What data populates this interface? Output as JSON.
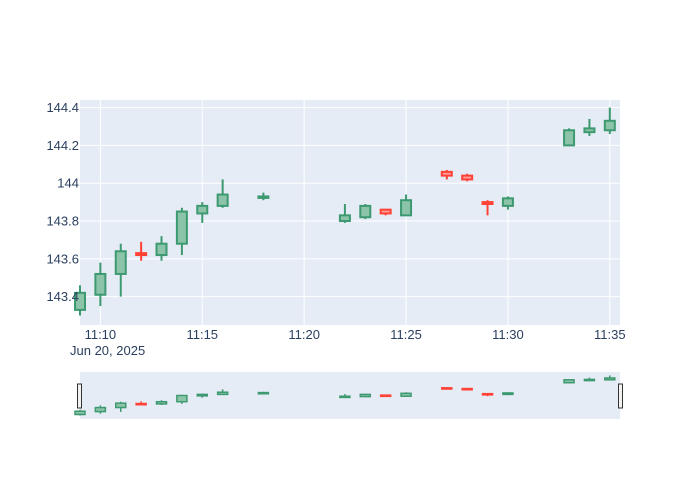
{
  "chart_data": {
    "type": "candlestick",
    "x_axis": {
      "ticks": [
        "11:10",
        "11:15",
        "11:20",
        "11:25",
        "11:30",
        "11:35"
      ],
      "date_label": "Jun 20, 2025",
      "range": [
        "11:09",
        "11:35.5"
      ]
    },
    "y_axis": {
      "ticks": [
        "143.4",
        "143.6",
        "143.8",
        "144",
        "144.2",
        "144.4"
      ],
      "range": [
        143.25,
        144.44
      ]
    },
    "grid": true,
    "rangeslider": true,
    "colors": {
      "increasing": "#3d9970",
      "increasing_fill": "#8cc4a9",
      "decreasing": "#ff4136",
      "decreasing_fill": "#ffa09b",
      "plot_background": "#e5ecf6",
      "grid": "#ffffff",
      "text": "#2a3f5f"
    },
    "candles": [
      {
        "time": "11:09",
        "open": 143.33,
        "high": 143.46,
        "low": 143.3,
        "close": 143.42
      },
      {
        "time": "11:10",
        "open": 143.41,
        "high": 143.58,
        "low": 143.35,
        "close": 143.52
      },
      {
        "time": "11:11",
        "open": 143.52,
        "high": 143.68,
        "low": 143.4,
        "close": 143.64
      },
      {
        "time": "11:12",
        "open": 143.63,
        "high": 143.69,
        "low": 143.59,
        "close": 143.62
      },
      {
        "time": "11:13",
        "open": 143.62,
        "high": 143.72,
        "low": 143.59,
        "close": 143.68
      },
      {
        "time": "11:14",
        "open": 143.68,
        "high": 143.87,
        "low": 143.62,
        "close": 143.85
      },
      {
        "time": "11:15",
        "open": 143.84,
        "high": 143.9,
        "low": 143.79,
        "close": 143.88
      },
      {
        "time": "11:16",
        "open": 143.88,
        "high": 144.02,
        "low": 143.87,
        "close": 143.94
      },
      {
        "time": "11:18",
        "open": 143.93,
        "high": 143.95,
        "low": 143.91,
        "close": 143.93
      },
      {
        "time": "11:22",
        "open": 143.8,
        "high": 143.89,
        "low": 143.79,
        "close": 143.83
      },
      {
        "time": "11:23",
        "open": 143.82,
        "high": 143.89,
        "low": 143.81,
        "close": 143.88
      },
      {
        "time": "11:24",
        "open": 143.86,
        "high": 143.86,
        "low": 143.83,
        "close": 143.84
      },
      {
        "time": "11:25",
        "open": 143.83,
        "high": 143.94,
        "low": 143.83,
        "close": 143.91
      },
      {
        "time": "11:27",
        "open": 144.06,
        "high": 144.07,
        "low": 144.02,
        "close": 144.04
      },
      {
        "time": "11:28",
        "open": 144.04,
        "high": 144.05,
        "low": 144.01,
        "close": 144.02
      },
      {
        "time": "11:29",
        "open": 143.9,
        "high": 143.91,
        "low": 143.83,
        "close": 143.89
      },
      {
        "time": "11:30",
        "open": 143.88,
        "high": 143.93,
        "low": 143.86,
        "close": 143.92
      },
      {
        "time": "11:33",
        "open": 144.2,
        "high": 144.29,
        "low": 144.2,
        "close": 144.28
      },
      {
        "time": "11:34",
        "open": 144.27,
        "high": 144.34,
        "low": 144.25,
        "close": 144.29
      },
      {
        "time": "11:35",
        "open": 144.28,
        "high": 144.4,
        "low": 144.26,
        "close": 144.33
      }
    ]
  }
}
